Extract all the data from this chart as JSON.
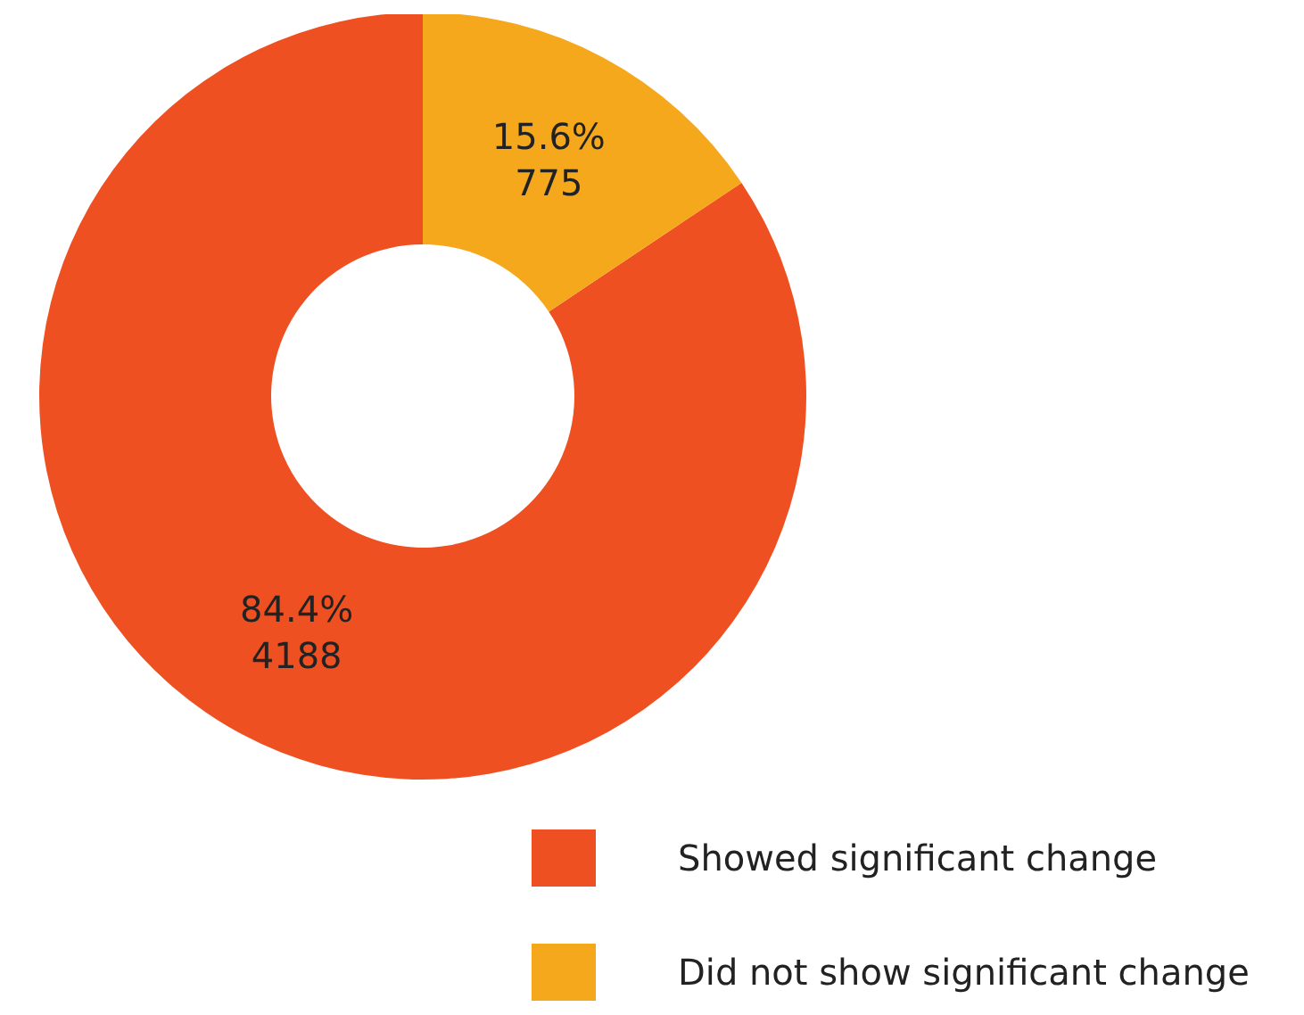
{
  "chart_data": {
    "type": "donut",
    "categories": [
      "Showed significant change",
      "Did not show significant change"
    ],
    "values": [
      4188,
      775
    ],
    "colors": [
      "#ef5022",
      "#f6a81c"
    ],
    "value_labels": [
      "84.4%\n4188",
      "15.6%\n775"
    ],
    "legend": "bottom right"
  }
}
